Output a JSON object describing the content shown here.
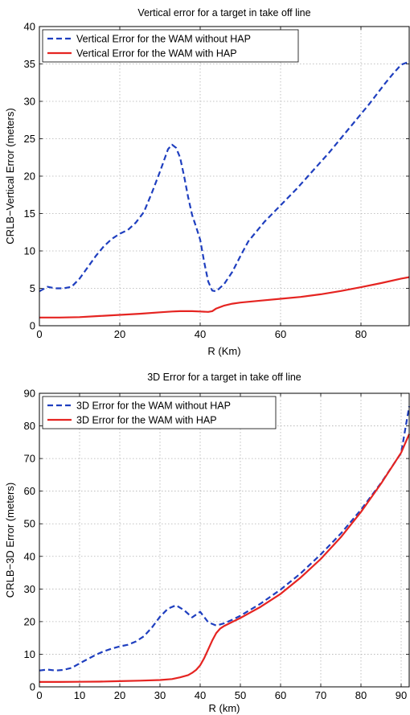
{
  "chart_data": [
    {
      "type": "line",
      "title": "Vertical error for a target in take off line",
      "xlabel": "R (Km)",
      "ylabel": "CRLB−Vertical Error (meters)",
      "xlim": [
        0,
        92
      ],
      "ylim": [
        0,
        40
      ],
      "xticks": [
        0,
        20,
        40,
        60,
        80
      ],
      "yticks": [
        0,
        5,
        10,
        15,
        20,
        25,
        30,
        35,
        40
      ],
      "grid": true,
      "legend": "top-left",
      "series": [
        {
          "name": "Vertical Error for the WAM without HAP",
          "style": "dashed",
          "color": "#1f3fbf",
          "x": [
            0,
            2,
            4,
            6,
            8,
            10,
            12,
            14,
            16,
            18,
            20,
            22,
            24,
            26,
            28,
            30,
            32,
            33,
            34,
            35,
            36,
            37,
            38,
            39,
            40,
            41,
            42,
            43,
            44,
            46,
            48,
            50,
            52,
            54,
            56,
            58,
            60,
            62,
            64,
            66,
            68,
            70,
            72,
            74,
            76,
            78,
            80,
            82,
            84,
            86,
            88,
            90,
            92
          ],
          "y": [
            4.6,
            5.2,
            5.0,
            5.0,
            5.2,
            6.3,
            7.8,
            9.3,
            10.6,
            11.6,
            12.3,
            12.8,
            13.8,
            15.2,
            17.8,
            20.6,
            23.6,
            24.2,
            23.8,
            22.5,
            20.0,
            17.2,
            14.8,
            13.2,
            11.5,
            8.5,
            5.9,
            4.7,
            4.6,
            5.6,
            7.2,
            9.3,
            11.3,
            12.6,
            13.9,
            15.0,
            16.1,
            17.2,
            18.3,
            19.5,
            20.7,
            21.9,
            23.1,
            24.4,
            25.7,
            27.0,
            28.3,
            29.6,
            31.0,
            32.4,
            33.7,
            34.9,
            35.3
          ]
        },
        {
          "name": "Vertical Error for the WAM with HAP",
          "style": "solid",
          "color": "#e52421",
          "x": [
            0,
            5,
            10,
            15,
            20,
            25,
            30,
            33,
            35,
            38,
            40,
            42,
            43,
            44,
            46,
            48,
            50,
            55,
            60,
            65,
            70,
            75,
            80,
            85,
            90,
            92
          ],
          "y": [
            1.1,
            1.1,
            1.15,
            1.3,
            1.45,
            1.6,
            1.8,
            1.9,
            1.95,
            1.95,
            1.9,
            1.85,
            1.95,
            2.3,
            2.7,
            2.95,
            3.1,
            3.35,
            3.6,
            3.85,
            4.2,
            4.65,
            5.15,
            5.7,
            6.3,
            6.5
          ]
        }
      ]
    },
    {
      "type": "line",
      "title": "3D Error for a target in take off line",
      "xlabel": "R (km)",
      "ylabel": "CRLB−3D Error (meters)",
      "xlim": [
        0,
        92
      ],
      "ylim": [
        0,
        90
      ],
      "xticks": [
        0,
        10,
        20,
        30,
        40,
        50,
        60,
        70,
        80,
        90
      ],
      "yticks": [
        0,
        10,
        20,
        30,
        40,
        50,
        60,
        70,
        80,
        90
      ],
      "grid": true,
      "legend": "top-left",
      "series": [
        {
          "name": "3D Error for the WAM without HAP",
          "style": "dashed",
          "color": "#1f3fbf",
          "x": [
            0,
            2,
            4,
            6,
            8,
            10,
            12,
            14,
            16,
            18,
            20,
            22,
            24,
            26,
            28,
            30,
            32,
            34,
            36,
            38,
            40,
            42,
            44,
            46,
            48,
            50,
            55,
            60,
            65,
            70,
            75,
            80,
            85,
            90,
            92
          ],
          "y": [
            5.0,
            5.3,
            5.0,
            5.2,
            5.8,
            7.2,
            8.5,
            9.8,
            10.9,
            11.7,
            12.4,
            12.9,
            13.9,
            15.5,
            18.2,
            21.5,
            24.0,
            25.0,
            23.5,
            21.3,
            23.0,
            19.8,
            18.8,
            19.5,
            20.6,
            21.8,
            25.5,
            29.8,
            34.8,
            40.6,
            47.0,
            54.3,
            62.5,
            71.7,
            86.0
          ]
        },
        {
          "name": "3D Error for the WAM with HAP",
          "style": "solid",
          "color": "#e52421",
          "x": [
            0,
            5,
            10,
            15,
            20,
            25,
            30,
            33,
            35,
            37,
            38,
            39,
            40,
            41,
            42,
            43,
            44,
            45,
            46,
            48,
            50,
            55,
            60,
            65,
            70,
            75,
            80,
            85,
            90,
            92
          ],
          "y": [
            1.5,
            1.5,
            1.55,
            1.6,
            1.75,
            1.9,
            2.1,
            2.4,
            2.9,
            3.6,
            4.3,
            5.2,
            6.6,
            8.8,
            11.5,
            14.2,
            16.5,
            17.9,
            18.7,
            19.9,
            21.1,
            24.5,
            28.5,
            33.5,
            39.2,
            45.9,
            53.6,
            62.3,
            71.8,
            77.5
          ]
        }
      ]
    }
  ]
}
